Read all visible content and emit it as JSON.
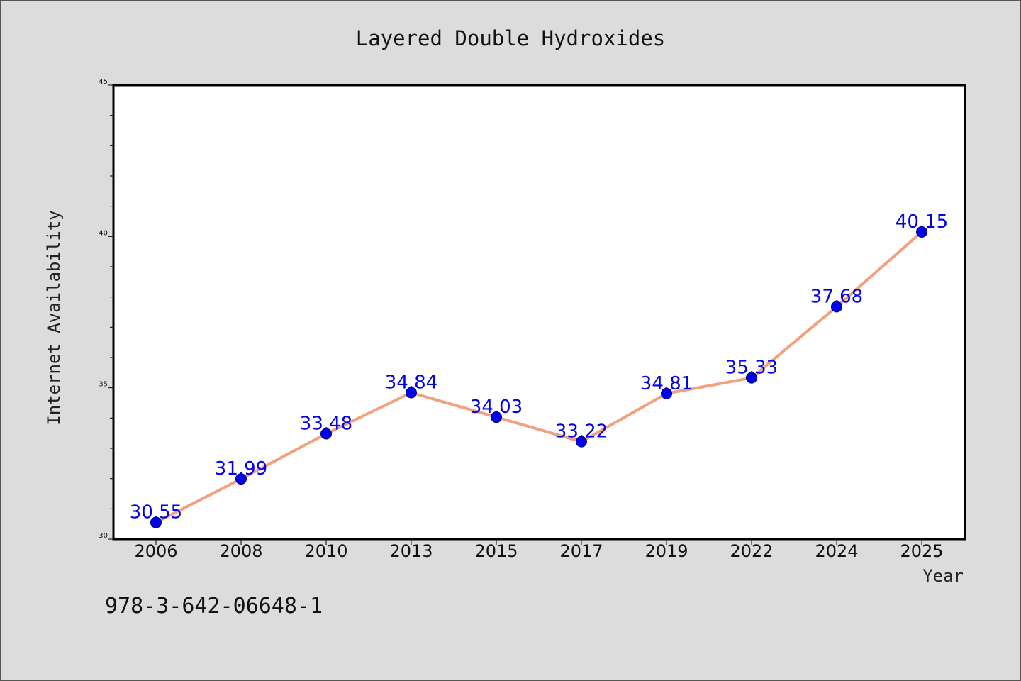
{
  "chart_data": {
    "type": "line",
    "title": "Layered Double Hydroxides",
    "xlabel": "Year",
    "ylabel": "Internet Availability",
    "categories": [
      "2006",
      "2008",
      "2010",
      "2013",
      "2015",
      "2017",
      "2019",
      "2022",
      "2024",
      "2025"
    ],
    "series": [
      {
        "values": [
          30.55,
          31.99,
          33.48,
          34.84,
          34.03,
          33.22,
          34.81,
          35.33,
          37.68,
          40.15
        ],
        "line_color": "#f4a07e",
        "marker_color": "#0000ee"
      }
    ],
    "data_labels": [
      "30.55",
      "31.99",
      "33.48",
      "34.84",
      "34.03",
      "33.22",
      "34.81",
      "35.33",
      "37.68",
      "40.15"
    ],
    "data_label_color": "#0000ee",
    "ylim": [
      30,
      45
    ],
    "yticks": [
      "30",
      "35",
      "40",
      "45"
    ],
    "yminor_step": 1,
    "grid": false,
    "legend": "none"
  },
  "footnote": "978-3-642-06648-1"
}
